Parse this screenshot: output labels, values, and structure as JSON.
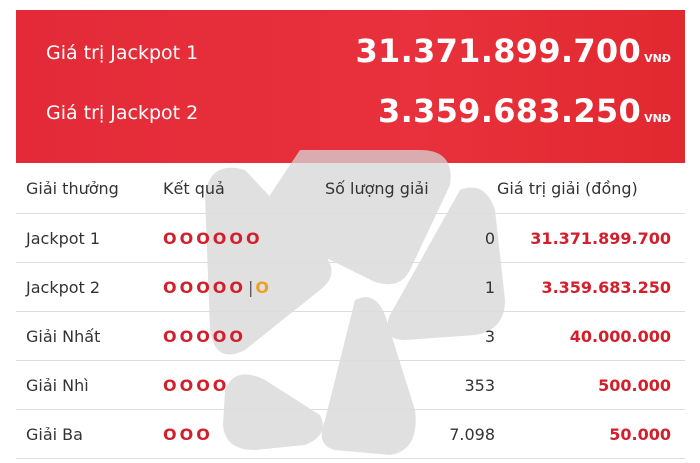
{
  "jackpots": [
    {
      "label": "Giá trị Jackpot 1",
      "amount": "31.371.899.700",
      "unit": "VNĐ"
    },
    {
      "label": "Giá trị Jackpot 2",
      "amount": "3.359.683.250",
      "unit": "VNĐ"
    }
  ],
  "table": {
    "headers": [
      "Giải thưởng",
      "Kết quả",
      "Số lượng giải",
      "Giá trị giải (đồng)"
    ],
    "rows": [
      {
        "prize": "Jackpot 1",
        "balls": "OOOOOO",
        "sep": "",
        "bonus": "",
        "count": "0",
        "value": "31.371.899.700"
      },
      {
        "prize": "Jackpot 2",
        "balls": "OOOOO",
        "sep": "|",
        "bonus": "O",
        "count": "1",
        "value": "3.359.683.250"
      },
      {
        "prize": "Giải Nhất",
        "balls": "OOOOO",
        "sep": "",
        "bonus": "",
        "count": "3",
        "value": "40.000.000"
      },
      {
        "prize": "Giải Nhì",
        "balls": "OOOO",
        "sep": "",
        "bonus": "",
        "count": "353",
        "value": "500.000"
      },
      {
        "prize": "Giải Ba",
        "balls": "OOO",
        "sep": "",
        "bonus": "",
        "count": "7.098",
        "value": "50.000"
      }
    ]
  },
  "colors": {
    "banner": "#e42a38",
    "accent": "#d31f2c",
    "bonus": "#f0a020"
  },
  "watermark_icon": "star-logo-watermark-icon"
}
